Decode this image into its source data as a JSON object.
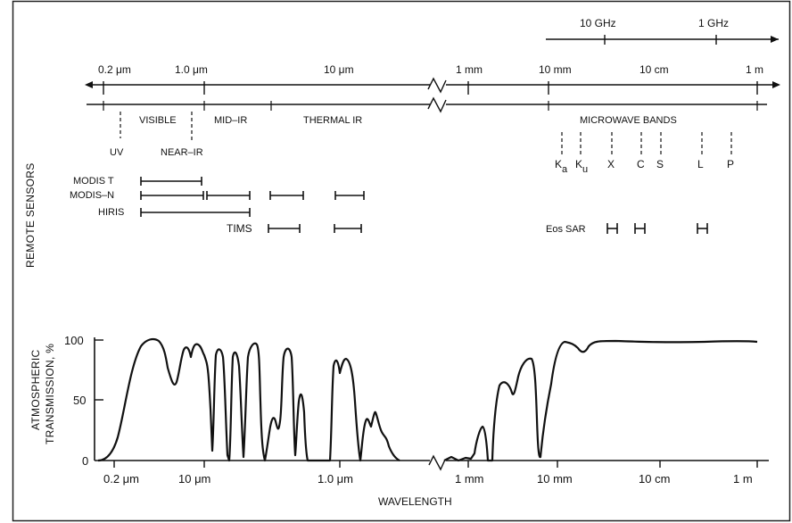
{
  "frequency_scale": {
    "labels": [
      "10 GHz",
      "1 GHz"
    ]
  },
  "wavelength_scale_top": {
    "labels": [
      "0.2 μm",
      "1.0 μm",
      "10 μm",
      "1 mm",
      "10 mm",
      "10 cm",
      "1 m"
    ]
  },
  "spectral_regions": {
    "visible": "VISIBLE",
    "mid_ir": "MID–IR",
    "thermal_ir": "THERMAL IR",
    "uv": "UV",
    "near_ir": "NEAR–IR",
    "microwave": "MICROWAVE BANDS"
  },
  "microwave_bands": [
    {
      "letter": "K",
      "sub": "a"
    },
    {
      "letter": "K",
      "sub": "u"
    },
    {
      "letter": "X",
      "sub": ""
    },
    {
      "letter": "C",
      "sub": ""
    },
    {
      "letter": "S",
      "sub": ""
    },
    {
      "letter": "L",
      "sub": ""
    },
    {
      "letter": "P",
      "sub": ""
    }
  ],
  "remote_sensors": {
    "title": "REMOTE SENSORS",
    "instruments": [
      {
        "name": "MODIS T"
      },
      {
        "name": "MODIS–N"
      },
      {
        "name": "HIRIS"
      },
      {
        "name": "TIMS"
      },
      {
        "name": "Eos SAR"
      }
    ]
  },
  "transmission": {
    "ylabel_line1": "ATMOSPHERIC",
    "ylabel_line2": "TRANSMISSION, %",
    "yticks": [
      "100",
      "50",
      "0"
    ],
    "xticks": [
      "0.2 μm",
      "10 μm",
      "1.0 μm",
      "1 mm",
      "10 mm",
      "10 cm",
      "1 m"
    ],
    "xlabel": "WAVELENGTH"
  }
}
